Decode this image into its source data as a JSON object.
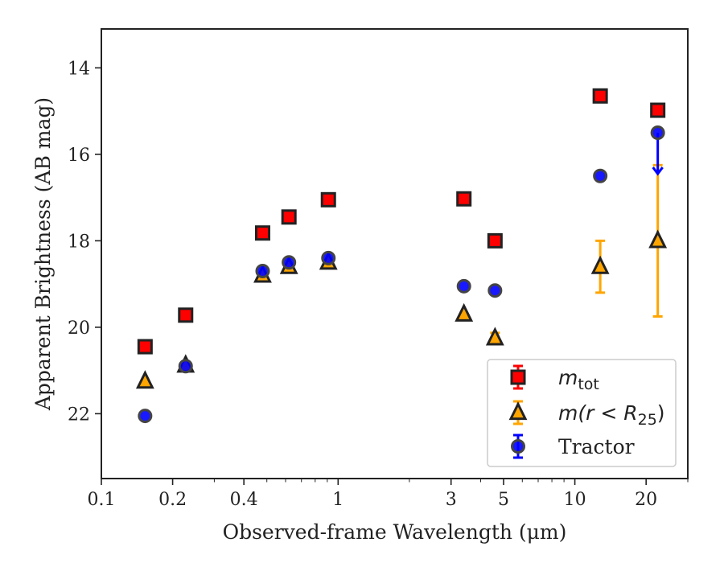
{
  "chart_data": {
    "type": "scatter",
    "xlabel": "Observed-frame Wavelength (μm)",
    "ylabel": "Apparent Brightness (AB mag)",
    "xscale": "log",
    "yaxis_inverted": true,
    "xlim": [
      0.1,
      30
    ],
    "ylim": [
      23.5,
      13.1
    ],
    "x_ticks": [
      0.1,
      0.2,
      0.4,
      1,
      3,
      5,
      10,
      20
    ],
    "x_tick_labels": [
      "0.1",
      "0.2",
      "0.4",
      "1",
      "3",
      "5",
      "10",
      "20"
    ],
    "y_ticks": [
      14,
      16,
      18,
      20,
      22
    ],
    "y_tick_labels": [
      "14",
      "16",
      "18",
      "20",
      "22"
    ],
    "grid": false,
    "legend_position": "bottom-right",
    "series": [
      {
        "name": "m_tot",
        "legend_label": {
          "main": "m",
          "sub": "tot"
        },
        "marker": "square",
        "color": "#ff0000",
        "edgecolor": "#222222",
        "errorbar_color": "#ff0000",
        "points": [
          {
            "x": 0.153,
            "y": 20.45
          },
          {
            "x": 0.227,
            "y": 19.72
          },
          {
            "x": 0.48,
            "y": 17.82
          },
          {
            "x": 0.62,
            "y": 17.45
          },
          {
            "x": 0.91,
            "y": 17.05
          },
          {
            "x": 3.4,
            "y": 17.03
          },
          {
            "x": 4.6,
            "y": 18.0
          },
          {
            "x": 12.8,
            "y": 14.65
          },
          {
            "x": 22.4,
            "y": 14.98
          }
        ]
      },
      {
        "name": "m(r < R25)",
        "legend_label": {
          "main": "m(r < R",
          "sub": "25",
          "tail": ")"
        },
        "marker": "triangle",
        "color": "#ffa500",
        "edgecolor": "#222222",
        "errorbar_color": "#ffa500",
        "points": [
          {
            "x": 0.153,
            "y": 21.25
          },
          {
            "x": 0.227,
            "y": 20.88
          },
          {
            "x": 0.48,
            "y": 18.8
          },
          {
            "x": 0.62,
            "y": 18.6
          },
          {
            "x": 0.91,
            "y": 18.5
          },
          {
            "x": 3.4,
            "y": 19.7
          },
          {
            "x": 4.6,
            "y": 20.25,
            "err_low": 0.12,
            "err_high": 0.12
          },
          {
            "x": 12.8,
            "y": 18.6,
            "err_low": 0.6,
            "err_high": 0.6
          },
          {
            "x": 22.4,
            "y": 18.0,
            "err_low": 1.75,
            "err_high": 1.75
          }
        ]
      },
      {
        "name": "Tractor",
        "legend_label": {
          "main": "Tractor"
        },
        "marker": "circle",
        "color": "#0000ff",
        "edgecolor": "#444444",
        "errorbar_color": "#0000ff",
        "points": [
          {
            "x": 0.153,
            "y": 22.05
          },
          {
            "x": 0.227,
            "y": 20.9
          },
          {
            "x": 0.48,
            "y": 18.7
          },
          {
            "x": 0.62,
            "y": 18.5
          },
          {
            "x": 0.91,
            "y": 18.4
          },
          {
            "x": 3.4,
            "y": 19.05
          },
          {
            "x": 4.6,
            "y": 19.15
          },
          {
            "x": 12.8,
            "y": 16.5
          },
          {
            "x": 22.4,
            "y": 15.5,
            "upper_limit_arrow_to": 16.45
          }
        ]
      }
    ]
  }
}
